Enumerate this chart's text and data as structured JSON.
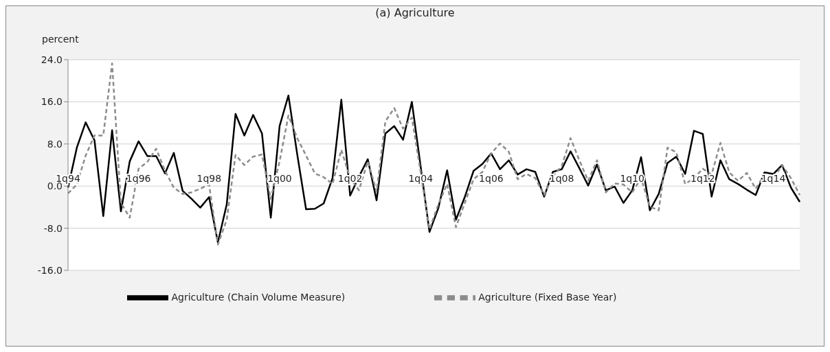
{
  "chart_data": {
    "type": "line",
    "title": "(a) Agriculture",
    "ylabel": "percent",
    "categories": [
      "1q94",
      null,
      null,
      null,
      null,
      null,
      null,
      null,
      "1q96",
      null,
      null,
      null,
      null,
      null,
      null,
      null,
      "1q98",
      null,
      null,
      null,
      null,
      null,
      null,
      null,
      "1q00",
      null,
      null,
      null,
      null,
      null,
      null,
      null,
      "1q02",
      null,
      null,
      null,
      null,
      null,
      null,
      null,
      "1q04",
      null,
      null,
      null,
      null,
      null,
      null,
      null,
      "1q06",
      null,
      null,
      null,
      null,
      null,
      null,
      null,
      "1q08",
      null,
      null,
      null,
      null,
      null,
      null,
      null,
      "1q10",
      null,
      null,
      null,
      null,
      null,
      null,
      null,
      "1q12",
      null,
      null,
      null,
      null,
      null,
      null,
      null,
      "1q14",
      null,
      null,
      null
    ],
    "series": [
      {
        "name": "Agriculture (Chain Volume Measure)",
        "color": "#000000",
        "line_style": "solid",
        "values": [
          -0.3,
          7.3,
          12.1,
          8.7,
          -5.7,
          10.6,
          -4.8,
          4.7,
          8.5,
          5.7,
          5.7,
          2.4,
          6.3,
          -0.9,
          -2.4,
          -4.1,
          -2.1,
          -10.7,
          -3.5,
          13.7,
          9.6,
          13.5,
          10.0,
          -6.0,
          11.4,
          17.2,
          6.0,
          -4.4,
          -4.3,
          -3.3,
          1.5,
          16.4,
          -1.8,
          1.8,
          5.1,
          -2.7,
          10.0,
          11.4,
          8.8,
          16.0,
          3.7,
          -8.7,
          -4.2,
          3.0,
          -6.4,
          -2.1,
          2.9,
          4.2,
          6.2,
          3.2,
          4.9,
          2.2,
          3.2,
          2.7,
          -2.0,
          2.7,
          3.2,
          6.6,
          3.4,
          0.1,
          4.1,
          -0.8,
          -0.1,
          -3.2,
          -0.8,
          5.5,
          -4.6,
          -1.5,
          4.4,
          5.6,
          2.3,
          10.5,
          9.9,
          -2.0,
          4.9,
          1.3,
          0.4,
          -0.7,
          -1.7,
          2.6,
          2.3,
          4.0,
          -0.3,
          -3.0
        ]
      },
      {
        "name": "Agriculture (Fixed Base Year)",
        "color": "#8c8c8c",
        "line_style": "dashed",
        "values": [
          -1.4,
          0.3,
          5.8,
          9.6,
          9.6,
          23.3,
          -3.2,
          -6.0,
          3.3,
          4.6,
          7.1,
          2.9,
          -0.3,
          -1.5,
          -1.2,
          -0.5,
          0.3,
          -11.1,
          -6.4,
          5.9,
          4.0,
          5.6,
          6.0,
          -2.4,
          4.7,
          13.4,
          9.1,
          5.8,
          2.4,
          1.7,
          0.4,
          6.9,
          1.5,
          -0.8,
          4.7,
          -1.0,
          12.3,
          14.8,
          10.9,
          13.0,
          2.6,
          -8.2,
          -3.5,
          0.4,
          -7.8,
          -3.2,
          1.3,
          2.7,
          6.2,
          8.1,
          6.5,
          1.3,
          2.3,
          1.5,
          -1.7,
          1.9,
          3.8,
          9.1,
          4.9,
          1.0,
          4.9,
          -1.2,
          0.5,
          0.3,
          -1.2,
          1.5,
          -3.9,
          -4.6,
          7.3,
          6.4,
          0.4,
          1.5,
          3.3,
          2.2,
          8.2,
          2.6,
          1.0,
          2.5,
          -0.5,
          2.2,
          1.4,
          4.0,
          1.5,
          -1.7
        ]
      }
    ],
    "ylim": [
      -16,
      24
    ],
    "yticks": [
      {
        "value": -16,
        "label": "-16.0"
      },
      {
        "value": -8,
        "label": "-8.0"
      },
      {
        "value": 0,
        "label": "0.0"
      },
      {
        "value": 8,
        "label": "8.0"
      },
      {
        "value": 16,
        "label": "16.0"
      },
      {
        "value": 24,
        "label": "24.0"
      }
    ],
    "grid": "y",
    "legend": "bottom"
  }
}
